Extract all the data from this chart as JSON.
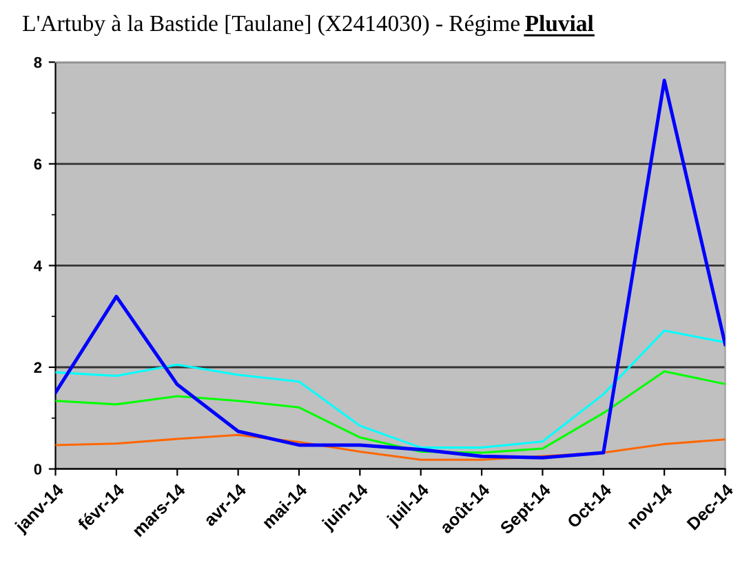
{
  "chart_data": {
    "type": "line",
    "title": "L'Artuby à la Bastide [Taulane] (X2414030) - Régime Pluvial",
    "categories": [
      "janv-14",
      "févr-14",
      "mars-14",
      "avr-14",
      "mai-14",
      "juin-14",
      "juil-14",
      "août-14",
      "Sept-14",
      "Oct-14",
      "nov-14",
      "Dec-14"
    ],
    "series": [
      {
        "color": "#ff6600",
        "values": [
          0.47,
          0.5,
          0.59,
          0.67,
          0.53,
          0.34,
          0.18,
          0.18,
          0.25,
          0.32,
          0.49,
          0.58
        ]
      },
      {
        "color": "#00ff00",
        "values": [
          1.34,
          1.27,
          1.43,
          1.34,
          1.21,
          0.62,
          0.34,
          0.32,
          0.4,
          1.1,
          1.92,
          1.67
        ]
      },
      {
        "color": "#00ffff",
        "values": [
          1.9,
          1.83,
          2.05,
          1.85,
          1.72,
          0.85,
          0.42,
          0.42,
          0.54,
          1.47,
          2.72,
          2.49
        ]
      },
      {
        "color": "#0000ff",
        "values": [
          1.5,
          3.39,
          1.66,
          0.74,
          0.47,
          0.47,
          0.38,
          0.25,
          0.22,
          0.32,
          7.64,
          2.45
        ]
      }
    ],
    "ylim": [
      0,
      8
    ],
    "yticks": [
      0,
      {
        "value": 1,
        "label": null
      },
      2,
      {
        "value": 3,
        "label": null
      },
      4,
      {
        "value": 5,
        "label": null
      },
      6,
      {
        "value": 7,
        "label": null
      },
      8
    ],
    "grid": "y",
    "marker": "none",
    "line_style": "solid"
  }
}
